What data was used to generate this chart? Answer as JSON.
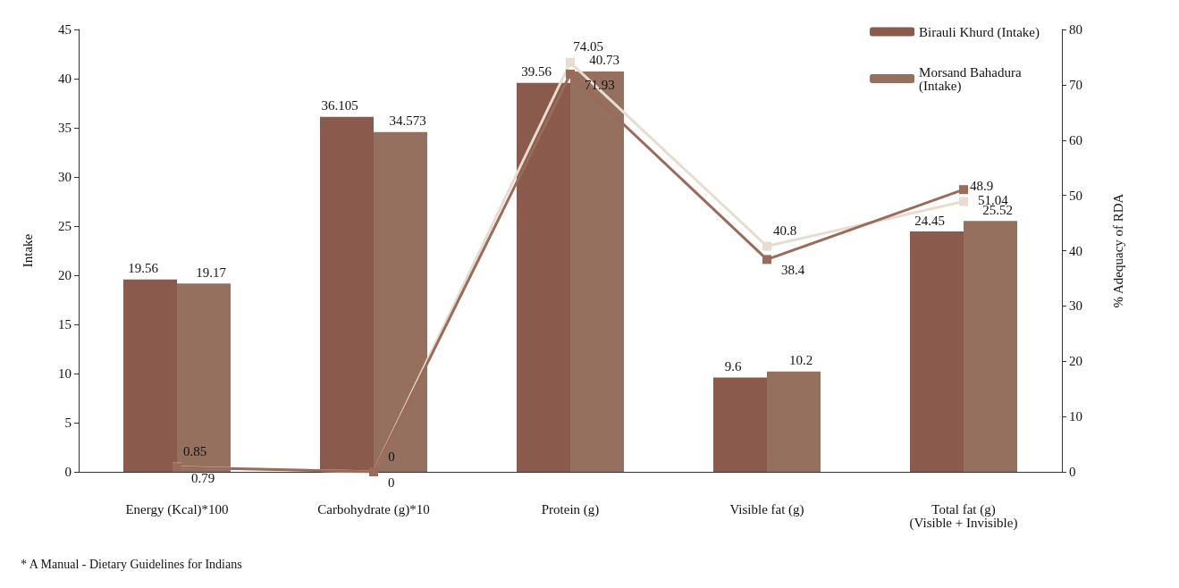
{
  "chart_data": {
    "type": "bar",
    "ylabel": "Intake",
    "y2label": "% Adequacy of RDA",
    "categories": [
      "Energy (Kcal)*100",
      "Carbohydrate (g)*10",
      "Protein (g)",
      "Visible fat (g)",
      "Total fat (g)\n(Visible + Invisible)"
    ],
    "series": [
      {
        "name": "Birauli Khurd (Intake)",
        "color": "#8a5a4c",
        "values": [
          19.56,
          36.105,
          39.56,
          9.6,
          24.45
        ]
      },
      {
        "name": "Morsand Bahadura (Intake)",
        "color": "#96705f",
        "values": [
          19.17,
          34.573,
          40.73,
          10.2,
          25.52
        ]
      },
      {
        "type": "line",
        "axis": "y2",
        "color": "#e6ddd0",
        "values": [
          0.85,
          0,
          74.05,
          40.8,
          48.9
        ]
      },
      {
        "type": "line",
        "axis": "y2",
        "color": "#9a6a5a",
        "values": [
          0.79,
          0,
          71.93,
          38.4,
          51.04
        ]
      }
    ],
    "ylim": [
      0,
      45
    ],
    "yticks": [
      0,
      5,
      10,
      15,
      20,
      25,
      30,
      35,
      40,
      45
    ],
    "y2lim": [
      0,
      80
    ],
    "y2ticks": [
      0,
      10,
      20,
      30,
      40,
      50,
      60,
      70,
      80
    ],
    "data_labels": true,
    "legend": "top right",
    "marker": "square",
    "grid": false,
    "annotations": [
      "* A Manual - Dietary Guidelines for Indians"
    ]
  }
}
